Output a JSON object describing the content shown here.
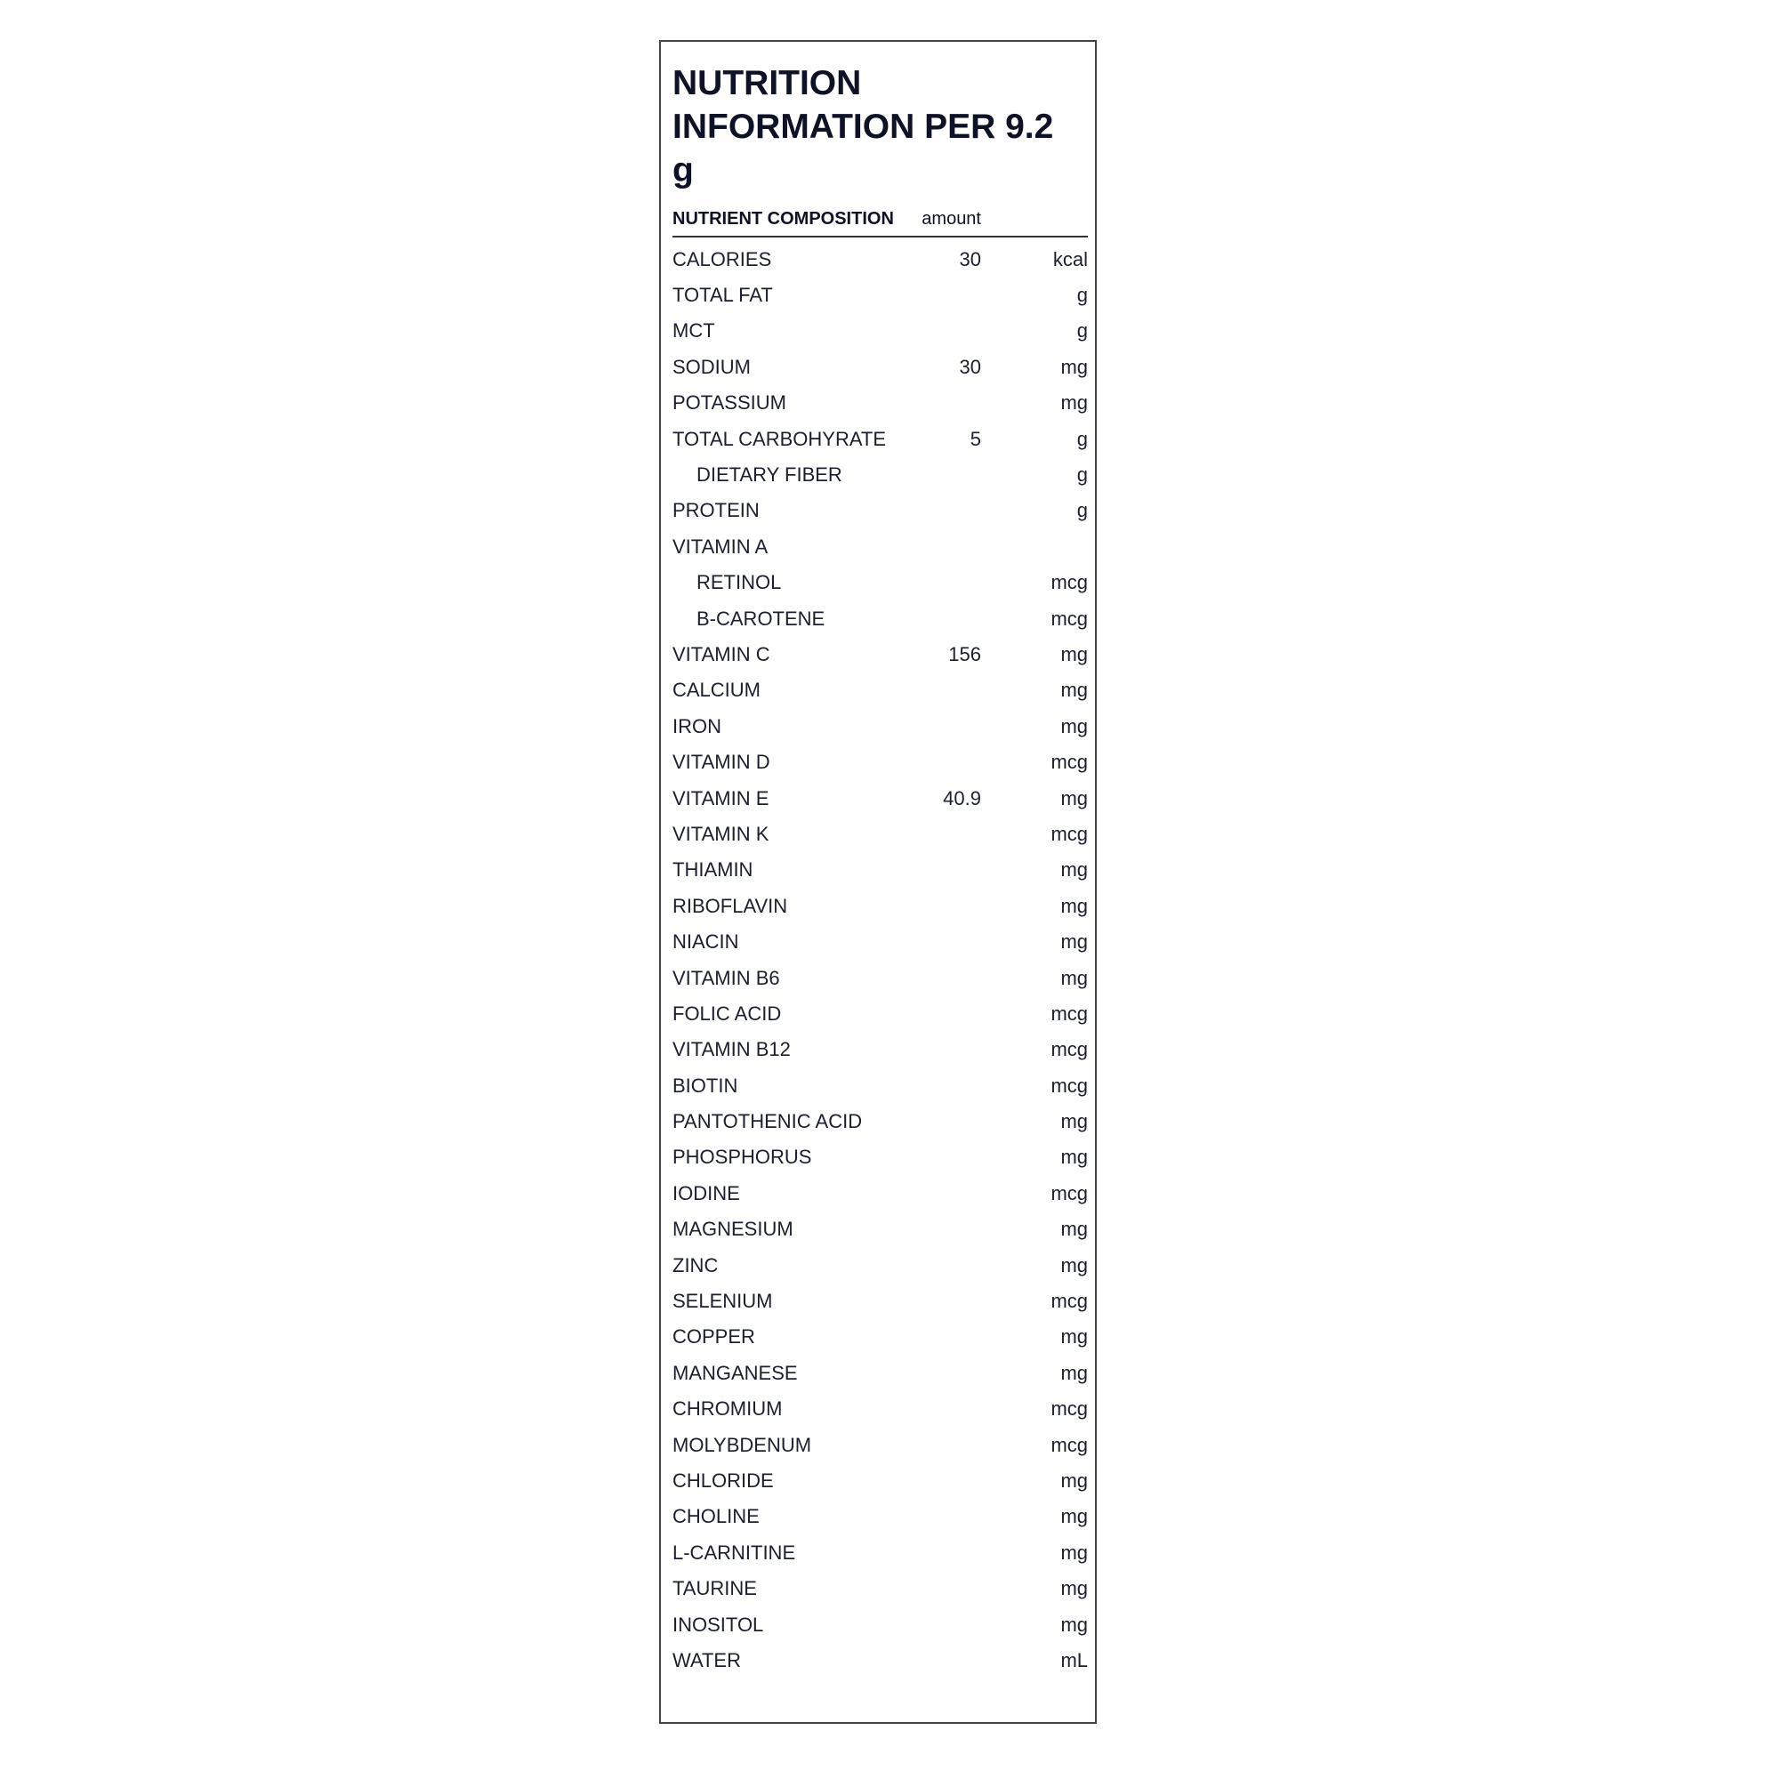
{
  "title": "NUTRITION INFORMATION PER 9.2 g",
  "header": {
    "nutrient": "NUTRIENT COMPOSITION",
    "amount": "amount",
    "unit": ""
  },
  "rows": [
    {
      "name": "CALORIES",
      "amount": "30",
      "unit": "kcal"
    },
    {
      "name": "TOTAL FAT",
      "amount": "",
      "unit": "g"
    },
    {
      "name": "MCT",
      "amount": "",
      "unit": "g"
    },
    {
      "name": "SODIUM",
      "amount": "30",
      "unit": "mg"
    },
    {
      "name": "POTASSIUM",
      "amount": "",
      "unit": "mg"
    },
    {
      "name": "TOTAL CARBOHYRATE",
      "amount": "5",
      "unit": "g"
    },
    {
      "name": "DIETARY FIBER",
      "amount": "",
      "unit": "g",
      "sub": true
    },
    {
      "name": "PROTEIN",
      "amount": "",
      "unit": "g"
    },
    {
      "name": "VITAMIN A",
      "amount": "",
      "unit": ""
    },
    {
      "name": "RETINOL",
      "amount": "",
      "unit": "mcg",
      "sub": true
    },
    {
      "name": "B-CAROTENE",
      "amount": "",
      "unit": "mcg",
      "sub": true
    },
    {
      "name": "VITAMIN C",
      "amount": "156",
      "unit": "mg"
    },
    {
      "name": "CALCIUM",
      "amount": "",
      "unit": "mg"
    },
    {
      "name": "IRON",
      "amount": "",
      "unit": "mg"
    },
    {
      "name": "VITAMIN D",
      "amount": "",
      "unit": "mcg"
    },
    {
      "name": "VITAMIN E",
      "amount": "40.9",
      "unit": "mg"
    },
    {
      "name": "VITAMIN K",
      "amount": "",
      "unit": "mcg"
    },
    {
      "name": "THIAMIN",
      "amount": "",
      "unit": "mg"
    },
    {
      "name": "RIBOFLAVIN",
      "amount": "",
      "unit": "mg"
    },
    {
      "name": "NIACIN",
      "amount": "",
      "unit": "mg"
    },
    {
      "name": "VITAMIN B6",
      "amount": "",
      "unit": "mg"
    },
    {
      "name": "FOLIC ACID",
      "amount": "",
      "unit": "mcg"
    },
    {
      "name": "VITAMIN B12",
      "amount": "",
      "unit": "mcg"
    },
    {
      "name": "BIOTIN",
      "amount": "",
      "unit": "mcg"
    },
    {
      "name": "PANTOTHENIC ACID",
      "amount": "",
      "unit": "mg"
    },
    {
      "name": "PHOSPHORUS",
      "amount": "",
      "unit": "mg"
    },
    {
      "name": "IODINE",
      "amount": "",
      "unit": "mcg"
    },
    {
      "name": "MAGNESIUM",
      "amount": "",
      "unit": "mg"
    },
    {
      "name": "ZINC",
      "amount": "",
      "unit": "mg"
    },
    {
      "name": "SELENIUM",
      "amount": "",
      "unit": "mcg"
    },
    {
      "name": "COPPER",
      "amount": "",
      "unit": "mg"
    },
    {
      "name": "MANGANESE",
      "amount": "",
      "unit": "mg"
    },
    {
      "name": "CHROMIUM",
      "amount": "",
      "unit": "mcg"
    },
    {
      "name": "MOLYBDENUM",
      "amount": "",
      "unit": "mcg"
    },
    {
      "name": "CHLORIDE",
      "amount": "",
      "unit": "mg"
    },
    {
      "name": "CHOLINE",
      "amount": "",
      "unit": "mg"
    },
    {
      "name": "L-CARNITINE",
      "amount": "",
      "unit": "mg"
    },
    {
      "name": "TAURINE",
      "amount": "",
      "unit": "mg"
    },
    {
      "name": "INOSITOL",
      "amount": "",
      "unit": "mg"
    },
    {
      "name": "WATER",
      "amount": "",
      "unit": "mL"
    }
  ]
}
